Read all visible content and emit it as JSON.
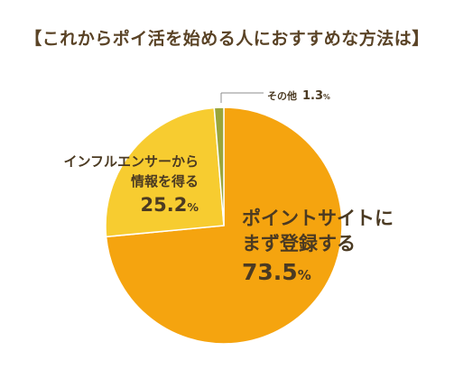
{
  "chart_data": {
    "type": "pie",
    "title": "【これからポイ活を始める人におすすめな方法は】",
    "unit": "%",
    "slices": [
      {
        "label_lines": [
          "ポイントサイトに",
          "まず登録する"
        ],
        "value": 73.5,
        "value_text": "73.5",
        "color": "#f5a40f"
      },
      {
        "label_lines": [
          "インフルエンサーから",
          "情報を得る"
        ],
        "value": 25.2,
        "value_text": "25.2",
        "color": "#f7cc30"
      },
      {
        "label_lines": [
          "その他"
        ],
        "value": 1.3,
        "value_text": "1.3",
        "color": "#9aa53a"
      }
    ]
  }
}
